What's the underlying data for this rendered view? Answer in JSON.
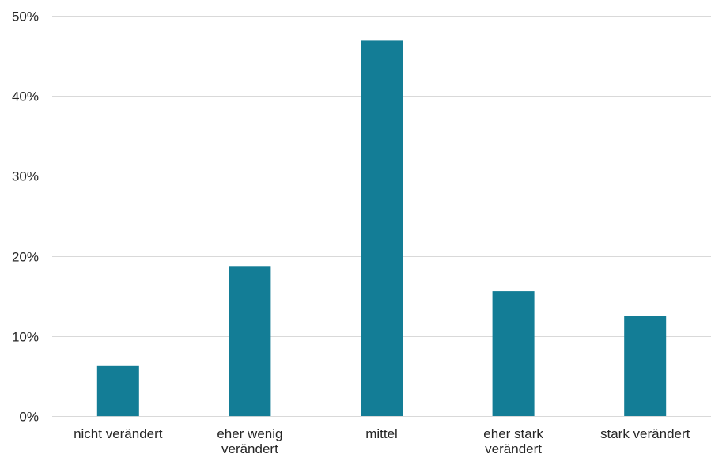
{
  "chart_data": {
    "type": "bar",
    "categories": [
      [
        "nicht verändert"
      ],
      [
        "eher wenig",
        "verändert"
      ],
      [
        "mittel"
      ],
      [
        "eher stark",
        "verändert"
      ],
      [
        "stark verändert"
      ]
    ],
    "values": [
      6.25,
      18.75,
      46.9,
      15.6,
      12.5
    ],
    "value_unit": "%",
    "ylim": [
      0,
      50
    ],
    "yticks": [
      0,
      10,
      20,
      30,
      40,
      50
    ],
    "ytick_labels": [
      "0%",
      "10%",
      "20%",
      "30%",
      "40%",
      "50%"
    ],
    "title": "",
    "xlabel": "",
    "ylabel": "",
    "grid": true,
    "legend": "none",
    "bar_color": "#137d96"
  }
}
